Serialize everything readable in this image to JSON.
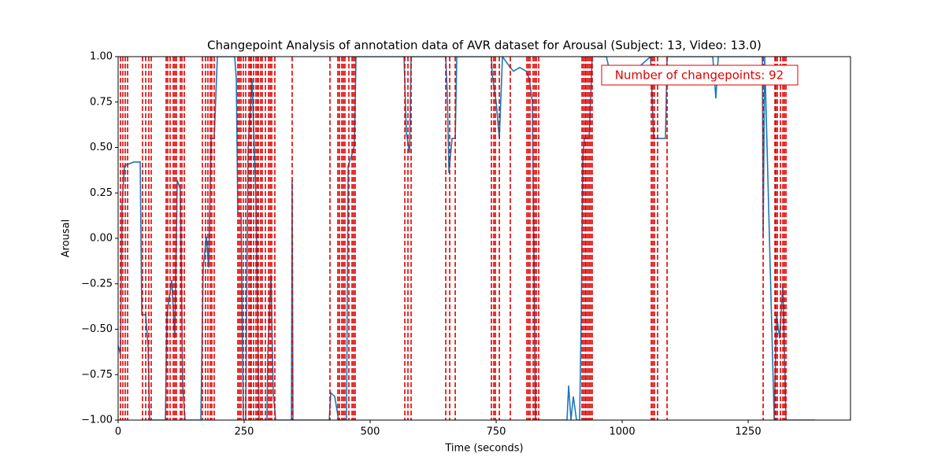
{
  "chart_data": {
    "type": "line",
    "title": "Changepoint Analysis of annotation data of AVR dataset for Arousal (Subject: 13, Video: 13.0)",
    "xlabel": "Time (seconds)",
    "ylabel": "Arousal",
    "annotation": "Number of changepoints: 92",
    "annotation_color": "#e00000",
    "xlim": [
      0,
      1453
    ],
    "ylim": [
      -1,
      1
    ],
    "xticks": [
      0,
      250,
      500,
      750,
      1000,
      1250
    ],
    "yticks": [
      {
        "value": -1,
        "label": "−1.00"
      },
      {
        "value": -0.75,
        "label": "−0.75"
      },
      {
        "value": -0.5,
        "label": "−0.50"
      },
      {
        "value": -0.25,
        "label": "−0.25"
      },
      {
        "value": 0,
        "label": "0.00"
      },
      {
        "value": 0.25,
        "label": "0.25"
      },
      {
        "value": 0.5,
        "label": "0.50"
      },
      {
        "value": 0.75,
        "label": "0.75"
      },
      {
        "value": 1,
        "label": "1.00"
      }
    ],
    "series": [
      {
        "name": "Arousal",
        "color": "#1f77b4",
        "x": [
          0,
          4.7,
          7.8,
          12.5,
          31.3,
          43.8,
          46.9,
          54.7,
          59.4,
          62.5,
          93.8,
          96.9,
          106.3,
          112.5,
          117.2,
          123.4,
          128.1,
          132.8,
          164.1,
          168.8,
          175,
          179.7,
          184.4,
          190.6,
          196.9,
          231.3,
          234.4,
          237.5,
          243.8,
          248.4,
          253.1,
          257.8,
          265.6,
          273.4,
          279.7,
          295.3,
          296.9,
          303.1,
          307.8,
          312.5,
          343.8,
          345.3,
          346.9,
          418.8,
          421.9,
          429.7,
          437.5,
          453.1,
          456.3,
          462.5,
          468.8,
          471.9,
          567.2,
          571.9,
          578.1,
          581.3,
          650,
          653.1,
          656.3,
          662.5,
          668.8,
          671.9,
          740.6,
          742.2,
          750,
          756.3,
          762.5,
          778.1,
          784.4,
          796.9,
          809.4,
          815.6,
          821.9,
          828.1,
          890.6,
          893.8,
          898.4,
          903.1,
          909.4,
          915.6,
          918.8,
          921.9,
          925,
          934.4,
          940.6,
          968.8,
          976.6,
          1015.6,
          1056.3,
          1062.5,
          1075,
          1085.9,
          1089.1,
          1179.7,
          1185.9,
          1190.6,
          1278.1,
          1279.7,
          1282.8,
          1301.6,
          1306.3,
          1312.5,
          1318.8,
          1325,
          1382.8
        ],
        "values": [
          -0.59,
          -0.64,
          0.19,
          0.4,
          0.42,
          0.42,
          -0.42,
          -0.42,
          -0.59,
          -1,
          -1,
          -0.42,
          -0.23,
          -0.55,
          0.32,
          0.27,
          -0.81,
          -1,
          -1,
          -0.16,
          0.01,
          -0.16,
          0.55,
          0.55,
          1,
          1,
          0.88,
          0.14,
          0.14,
          -1,
          -1,
          0.49,
          0.88,
          0.23,
          -1,
          -1,
          -0.64,
          -0.2,
          -0.85,
          -1,
          -1,
          0.32,
          -1,
          -1,
          -0.85,
          -0.87,
          -1,
          -1,
          0.4,
          0.45,
          0.51,
          1,
          1,
          0.58,
          0.47,
          1,
          1,
          0.79,
          0.36,
          0.55,
          0.55,
          1,
          1,
          0.9,
          0.75,
          0.55,
          1,
          0.94,
          0.92,
          0.94,
          0.92,
          0.88,
          0.75,
          -1,
          -1,
          -0.81,
          -1,
          -0.87,
          -1,
          -1,
          -0.42,
          0.45,
          0.55,
          0.55,
          1,
          1,
          0.9,
          0.9,
          1,
          0.55,
          0.55,
          0.55,
          1,
          1,
          0.77,
          1,
          1,
          0.01,
          1,
          -1,
          -0.42,
          -0.55,
          -0.25,
          -1,
          -1
        ]
      }
    ],
    "changepoints": {
      "color": "#e00000",
      "x": [
        4.7,
        9.4,
        14.1,
        18.8,
        48.4,
        54.7,
        60.9,
        65.6,
        95.3,
        98.4,
        103.1,
        109.4,
        112.5,
        115.6,
        123.4,
        126.6,
        131.3,
        167.2,
        173.4,
        178.1,
        182.8,
        185.9,
        190.6,
        237.5,
        240.6,
        243.8,
        248.4,
        253.1,
        259.4,
        262.5,
        264.1,
        268.8,
        273.4,
        276.6,
        278.1,
        282.8,
        285.9,
        292.2,
        298.4,
        301.6,
        304.7,
        310.9,
        345.3,
        420.3,
        435.9,
        439.1,
        443.8,
        446.9,
        450,
        457.8,
        464.1,
        467.2,
        470.3,
        568.8,
        575,
        581.3,
        650,
        657.8,
        668.8,
        740.6,
        745.3,
        748.4,
        756.3,
        778.1,
        810.9,
        814.1,
        817.2,
        823.4,
        826.6,
        829.7,
        834.4,
        920.3,
        923.4,
        926.6,
        928.1,
        931.3,
        934.4,
        937.5,
        940.6,
        1057.8,
        1060.9,
        1064.1,
        1070.3,
        1089.1,
        1279.7,
        1303.1,
        1304.7,
        1307.8,
        1314.1,
        1318.8,
        1321.9,
        1325
      ]
    }
  }
}
